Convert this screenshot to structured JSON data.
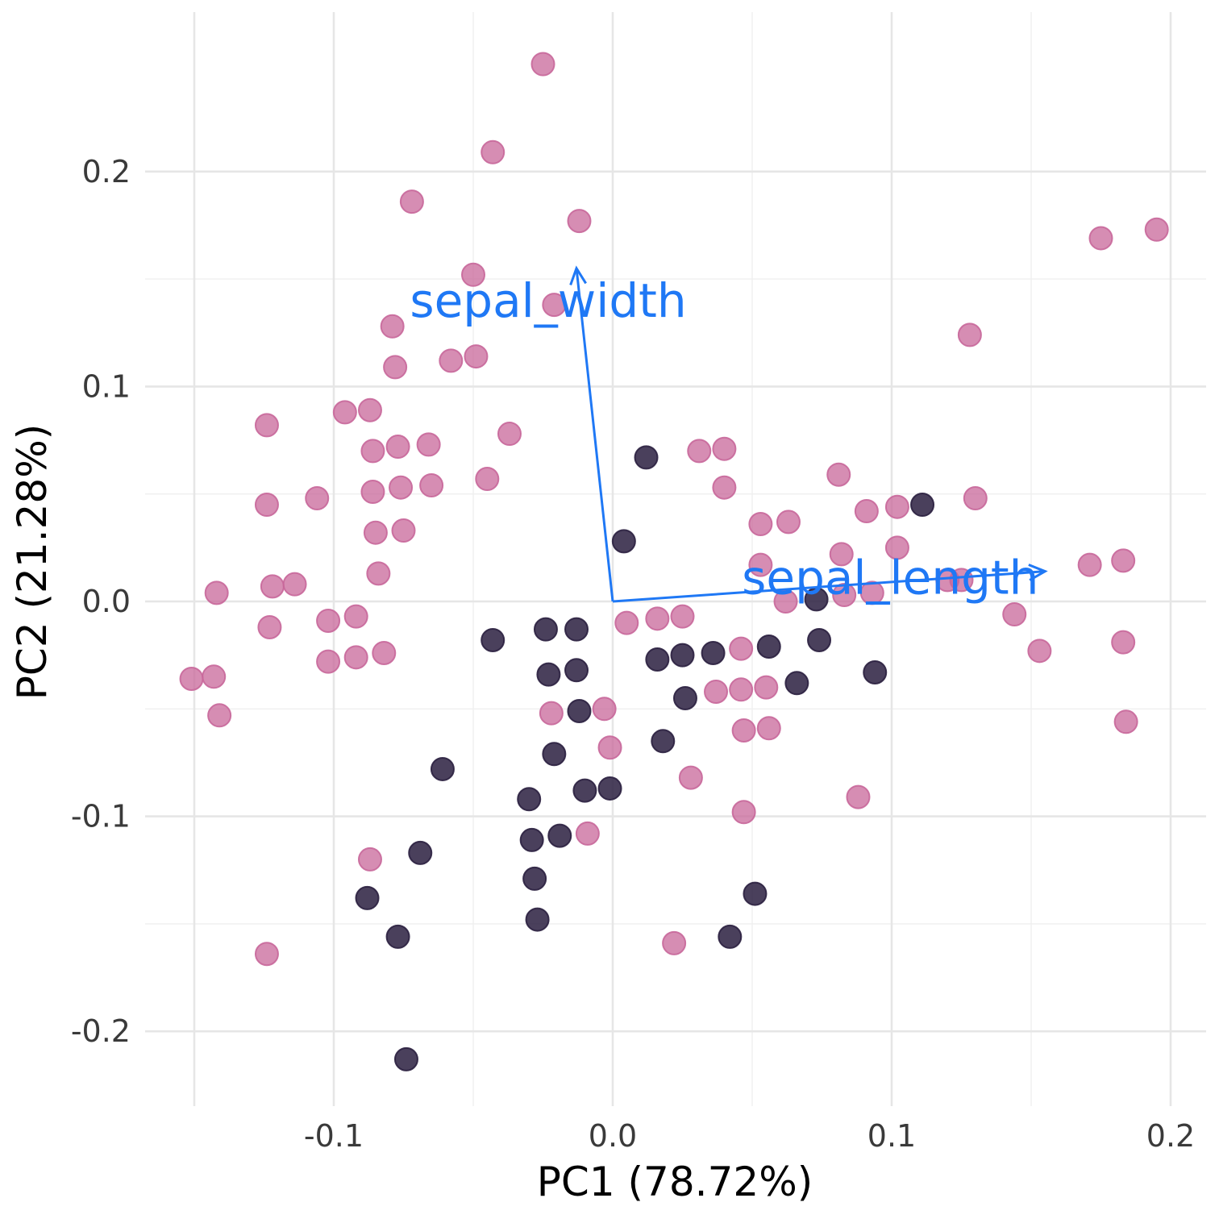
{
  "chart_data": {
    "type": "scatter",
    "title": "",
    "xlabel": "PC1 (78.72%)",
    "ylabel": "PC2 (21.28%)",
    "xlim": [
      -0.15,
      0.2
    ],
    "ylim": [
      -0.22,
      0.25
    ],
    "x_ticks": [
      -0.1,
      0.0,
      0.1,
      0.2
    ],
    "x_tick_labels": [
      "-0.1",
      "0.0",
      "0.1",
      "0.2"
    ],
    "y_ticks": [
      -0.2,
      -0.1,
      0.0,
      0.1,
      0.2
    ],
    "y_tick_labels": [
      "-0.2",
      "-0.1",
      "0.0",
      "0.1",
      "0.2"
    ],
    "grid": true,
    "legend": "none",
    "colors": {
      "pink": "#c8679a",
      "dark": "#2a1f3f",
      "arrow": "#1f78f5",
      "grid": "#e6e6e6"
    },
    "series": [
      {
        "color": "pink",
        "points": [
          [
            -0.025,
            0.25
          ],
          [
            -0.043,
            0.209
          ],
          [
            -0.072,
            0.186
          ],
          [
            -0.012,
            0.177
          ],
          [
            -0.05,
            0.152
          ],
          [
            -0.021,
            0.138
          ],
          [
            -0.079,
            0.128
          ],
          [
            -0.049,
            0.114
          ],
          [
            -0.058,
            0.112
          ],
          [
            -0.078,
            0.109
          ],
          [
            -0.096,
            0.088
          ],
          [
            -0.087,
            0.089
          ],
          [
            -0.124,
            0.082
          ],
          [
            -0.037,
            0.078
          ],
          [
            -0.066,
            0.073
          ],
          [
            -0.077,
            0.072
          ],
          [
            -0.086,
            0.07
          ],
          [
            -0.045,
            0.057
          ],
          [
            -0.065,
            0.054
          ],
          [
            -0.076,
            0.053
          ],
          [
            -0.086,
            0.051
          ],
          [
            -0.106,
            0.048
          ],
          [
            -0.124,
            0.045
          ],
          [
            -0.075,
            0.033
          ],
          [
            -0.085,
            0.032
          ],
          [
            -0.084,
            0.013
          ],
          [
            -0.122,
            0.007
          ],
          [
            -0.114,
            0.008
          ],
          [
            -0.142,
            0.004
          ],
          [
            -0.102,
            -0.009
          ],
          [
            -0.092,
            -0.007
          ],
          [
            -0.123,
            -0.012
          ],
          [
            -0.082,
            -0.024
          ],
          [
            -0.092,
            -0.026
          ],
          [
            -0.102,
            -0.028
          ],
          [
            -0.143,
            -0.035
          ],
          [
            -0.151,
            -0.036
          ],
          [
            -0.141,
            -0.053
          ],
          [
            -0.087,
            -0.12
          ],
          [
            -0.124,
            -0.164
          ],
          [
            0.031,
            0.07
          ],
          [
            0.04,
            0.071
          ],
          [
            0.04,
            0.053
          ],
          [
            0.053,
            0.036
          ],
          [
            0.063,
            0.037
          ],
          [
            0.081,
            0.059
          ],
          [
            0.082,
            0.022
          ],
          [
            0.091,
            0.042
          ],
          [
            0.102,
            0.044
          ],
          [
            0.102,
            0.025
          ],
          [
            0.13,
            0.048
          ],
          [
            0.12,
            0.01
          ],
          [
            0.125,
            0.01
          ],
          [
            0.053,
            0.017
          ],
          [
            0.062,
            0.0
          ],
          [
            0.083,
            0.003
          ],
          [
            0.093,
            0.004
          ],
          [
            0.144,
            -0.006
          ],
          [
            0.171,
            0.017
          ],
          [
            0.183,
            0.019
          ],
          [
            0.175,
            0.169
          ],
          [
            0.195,
            0.173
          ],
          [
            0.128,
            0.124
          ],
          [
            0.153,
            -0.023
          ],
          [
            0.183,
            -0.019
          ],
          [
            0.184,
            -0.056
          ],
          [
            0.005,
            -0.01
          ],
          [
            0.016,
            -0.008
          ],
          [
            0.025,
            -0.007
          ],
          [
            0.046,
            -0.022
          ],
          [
            0.046,
            -0.041
          ],
          [
            0.037,
            -0.042
          ],
          [
            0.055,
            -0.04
          ],
          [
            0.047,
            -0.06
          ],
          [
            0.056,
            -0.059
          ],
          [
            0.028,
            -0.082
          ],
          [
            0.047,
            -0.098
          ],
          [
            0.088,
            -0.091
          ],
          [
            0.022,
            -0.159
          ],
          [
            -0.022,
            -0.052
          ],
          [
            -0.003,
            -0.05
          ],
          [
            -0.001,
            -0.068
          ],
          [
            -0.009,
            -0.108
          ]
        ]
      },
      {
        "color": "dark",
        "points": [
          [
            0.012,
            0.067
          ],
          [
            0.004,
            0.028
          ],
          [
            0.111,
            0.045
          ],
          [
            0.073,
            0.001
          ],
          [
            0.074,
            -0.018
          ],
          [
            0.094,
            -0.033
          ],
          [
            0.056,
            -0.021
          ],
          [
            -0.043,
            -0.018
          ],
          [
            -0.024,
            -0.013
          ],
          [
            -0.013,
            -0.013
          ],
          [
            -0.023,
            -0.034
          ],
          [
            -0.013,
            -0.032
          ],
          [
            -0.012,
            -0.051
          ],
          [
            0.016,
            -0.027
          ],
          [
            0.025,
            -0.025
          ],
          [
            0.036,
            -0.024
          ],
          [
            0.026,
            -0.045
          ],
          [
            0.066,
            -0.038
          ],
          [
            0.018,
            -0.065
          ],
          [
            -0.021,
            -0.071
          ],
          [
            -0.061,
            -0.078
          ],
          [
            -0.01,
            -0.088
          ],
          [
            -0.001,
            -0.087
          ],
          [
            -0.03,
            -0.092
          ],
          [
            -0.029,
            -0.111
          ],
          [
            -0.019,
            -0.109
          ],
          [
            -0.069,
            -0.117
          ],
          [
            -0.028,
            -0.129
          ],
          [
            -0.088,
            -0.138
          ],
          [
            -0.027,
            -0.148
          ],
          [
            -0.077,
            -0.156
          ],
          [
            0.042,
            -0.156
          ],
          [
            0.051,
            -0.136
          ],
          [
            -0.074,
            -0.213
          ]
        ]
      }
    ],
    "loadings": [
      {
        "name": "sepal_width",
        "x": -0.013,
        "y": 0.155
      },
      {
        "name": "sepal_length",
        "x": 0.155,
        "y": 0.014
      }
    ]
  }
}
